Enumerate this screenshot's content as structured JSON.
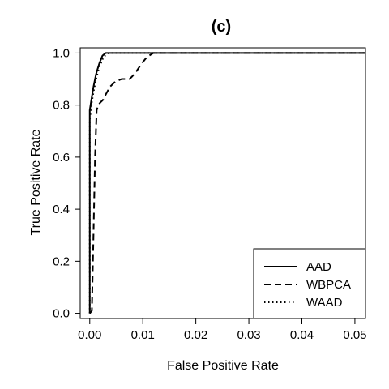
{
  "chart_data": {
    "type": "line",
    "title": "(c)",
    "xlabel": "False Positive Rate",
    "ylabel": "True Positive Rate",
    "xlim": [
      -0.0018,
      0.052
    ],
    "ylim": [
      -0.02,
      1.02
    ],
    "xticks": [
      0.0,
      0.01,
      0.02,
      0.03,
      0.04,
      0.05
    ],
    "xtick_labels": [
      "0.00",
      "0.01",
      "0.02",
      "0.03",
      "0.04",
      "0.05"
    ],
    "yticks": [
      0.0,
      0.2,
      0.4,
      0.6,
      0.8,
      1.0
    ],
    "ytick_labels": [
      "0.0",
      "0.2",
      "0.4",
      "0.6",
      "0.8",
      "1.0"
    ],
    "grid": false,
    "legend_position": "bottom-right",
    "series": [
      {
        "name": "AAD",
        "line_style": "solid",
        "x": [
          0.0,
          0.0,
          0.0003,
          0.0007,
          0.0012,
          0.0018,
          0.0024,
          0.003,
          0.052
        ],
        "y": [
          0.0,
          0.78,
          0.82,
          0.87,
          0.92,
          0.96,
          0.99,
          1.0,
          1.0
        ]
      },
      {
        "name": "WBPCA",
        "line_style": "dashed",
        "x": [
          0.0,
          0.0004,
          0.0007,
          0.001,
          0.0013,
          0.0016,
          0.002,
          0.0025,
          0.003,
          0.0038,
          0.0048,
          0.006,
          0.0075,
          0.008,
          0.0088,
          0.0098,
          0.0108,
          0.012,
          0.052
        ],
        "y": [
          0.0,
          0.01,
          0.3,
          0.6,
          0.78,
          0.8,
          0.81,
          0.82,
          0.84,
          0.87,
          0.89,
          0.9,
          0.9,
          0.91,
          0.93,
          0.96,
          0.985,
          1.0,
          1.0
        ]
      },
      {
        "name": "WAAD",
        "line_style": "dotted",
        "x": [
          0.0,
          0.0,
          0.0003,
          0.0008,
          0.0013,
          0.0019,
          0.0025,
          0.0031,
          0.0036,
          0.052
        ],
        "y": [
          0.0,
          0.74,
          0.8,
          0.86,
          0.91,
          0.95,
          0.98,
          0.995,
          1.0,
          1.0
        ]
      }
    ]
  }
}
